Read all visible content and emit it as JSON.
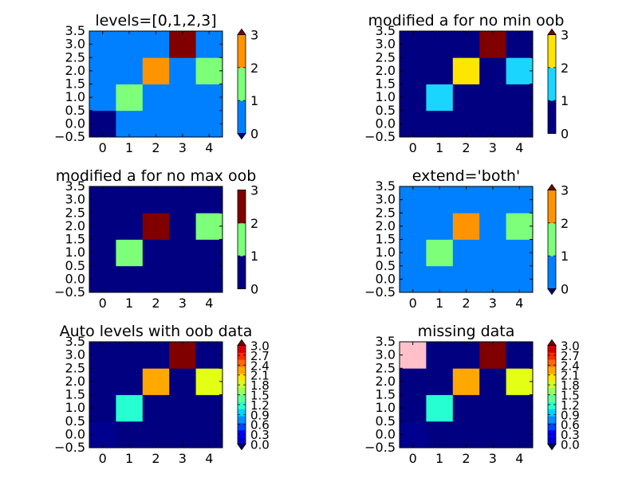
{
  "chart_data": [
    {
      "type": "heatmap",
      "title": "levels=[0,1,2,3]",
      "x_ticks": [
        "0",
        "1",
        "2",
        "3",
        "4"
      ],
      "y_ticks": [
        "3.5",
        "3.0",
        "2.5",
        "2.0",
        "1.5",
        "1.0",
        "0.5",
        "0.0",
        "−0.5"
      ],
      "rows": 4,
      "cols": 5,
      "cells": [
        [
          "#000080",
          "#0080ff",
          "#0080ff",
          "#0080ff",
          "#0080ff"
        ],
        [
          "#0080ff",
          "#7dff7a",
          "#0080ff",
          "#0080ff",
          "#0080ff"
        ],
        [
          "#0080ff",
          "#0080ff",
          "#ff9400",
          "#0080ff",
          "#7dff7a"
        ],
        [
          "#0080ff",
          "#0080ff",
          "#0080ff",
          "#800000",
          "#0080ff"
        ]
      ],
      "colorbar": {
        "segments": [
          "#0080ff",
          "#7dff7a",
          "#ff9400"
        ],
        "ticks": [
          "0",
          "1",
          "2",
          "3"
        ],
        "extend_min": "#000080",
        "extend_max": "#800000"
      }
    },
    {
      "type": "heatmap",
      "title": "modified a for no min oob",
      "x_ticks": [
        "0",
        "1",
        "2",
        "3",
        "4"
      ],
      "y_ticks": [
        "3.5",
        "3.0",
        "2.5",
        "2.0",
        "1.5",
        "1.0",
        "0.5",
        "0.0",
        "−0.5"
      ],
      "rows": 4,
      "cols": 5,
      "cells": [
        [
          "#000080",
          "#000080",
          "#000080",
          "#000080",
          "#000080"
        ],
        [
          "#000080",
          "#1ad6ff",
          "#000080",
          "#000080",
          "#000080"
        ],
        [
          "#000080",
          "#000080",
          "#ffe600",
          "#000080",
          "#1ad6ff"
        ],
        [
          "#000080",
          "#000080",
          "#000080",
          "#800000",
          "#000080"
        ]
      ],
      "colorbar": {
        "segments": [
          "#000080",
          "#1ad6ff",
          "#ffe600"
        ],
        "ticks": [
          "0",
          "1",
          "2",
          "3"
        ],
        "extend_min": null,
        "extend_max": "#800000"
      }
    },
    {
      "type": "heatmap",
      "title": "modified a for no max oob",
      "x_ticks": [
        "0",
        "1",
        "2",
        "3",
        "4"
      ],
      "y_ticks": [
        "3.5",
        "3.0",
        "2.5",
        "2.0",
        "1.5",
        "1.0",
        "0.5",
        "0.0",
        "−0.5"
      ],
      "rows": 4,
      "cols": 5,
      "cells": [
        [
          "#000080",
          "#000080",
          "#000080",
          "#000080",
          "#000080"
        ],
        [
          "#000080",
          "#7dff7a",
          "#000080",
          "#000080",
          "#000080"
        ],
        [
          "#000080",
          "#000080",
          "#800000",
          "#000080",
          "#7dff7a"
        ],
        [
          "#000080",
          "#000080",
          "#000080",
          "#000080",
          "#000080"
        ]
      ],
      "colorbar": {
        "segments": [
          "#000080",
          "#7dff7a",
          "#800000"
        ],
        "ticks": [
          "0",
          "1",
          "2",
          "3"
        ],
        "extend_min": null,
        "extend_max": null
      }
    },
    {
      "type": "heatmap",
      "title": "extend='both'",
      "x_ticks": [
        "0",
        "1",
        "2",
        "3",
        "4"
      ],
      "y_ticks": [
        "3.5",
        "3.0",
        "2.5",
        "2.0",
        "1.5",
        "1.0",
        "0.5",
        "0.0",
        "−0.5"
      ],
      "rows": 4,
      "cols": 5,
      "cells": [
        [
          "#0080ff",
          "#0080ff",
          "#0080ff",
          "#0080ff",
          "#0080ff"
        ],
        [
          "#0080ff",
          "#7dff7a",
          "#0080ff",
          "#0080ff",
          "#0080ff"
        ],
        [
          "#0080ff",
          "#0080ff",
          "#ff9400",
          "#0080ff",
          "#7dff7a"
        ],
        [
          "#0080ff",
          "#0080ff",
          "#0080ff",
          "#0080ff",
          "#0080ff"
        ]
      ],
      "colorbar": {
        "segments": [
          "#0080ff",
          "#7dff7a",
          "#ff9400"
        ],
        "ticks": [
          "0",
          "1",
          "2",
          "3"
        ],
        "extend_min": "#000080",
        "extend_max": "#800000"
      }
    },
    {
      "type": "heatmap",
      "title": "Auto levels with oob data",
      "x_ticks": [
        "0",
        "1",
        "2",
        "3",
        "4"
      ],
      "y_ticks": [
        "3.5",
        "3.0",
        "2.5",
        "2.0",
        "1.5",
        "1.0",
        "0.5",
        "0.0",
        "−0.5"
      ],
      "rows": 4,
      "cols": 5,
      "cells": [
        [
          "#00008f",
          "#000080",
          "#000080",
          "#000080",
          "#000080"
        ],
        [
          "#000080",
          "#26ffd1",
          "#000080",
          "#000080",
          "#000080"
        ],
        [
          "#000080",
          "#000080",
          "#ffa800",
          "#000080",
          "#e3ff14"
        ],
        [
          "#000080",
          "#000080",
          "#000080",
          "#800000",
          "#000080"
        ]
      ],
      "colorbar": {
        "segments": [
          "#0000cc",
          "#0000ff",
          "#0044ff",
          "#0090ff",
          "#00d4ff",
          "#29ffce",
          "#60ff97",
          "#97ff60",
          "#ceff29",
          "#ffe600",
          "#ffa700",
          "#ff6800",
          "#ff2a00",
          "#d40000"
        ],
        "ticks": [
          "0.0",
          "0.3",
          "0.6",
          "0.9",
          "1.2",
          "1.5",
          "1.8",
          "2.1",
          "2.4",
          "2.7",
          "3.0"
        ],
        "extend_min": "#000080",
        "extend_max": "#800000"
      }
    },
    {
      "type": "heatmap",
      "title": "missing data",
      "x_ticks": [
        "0",
        "1",
        "2",
        "3",
        "4"
      ],
      "y_ticks": [
        "3.5",
        "3.0",
        "2.5",
        "2.0",
        "1.5",
        "1.0",
        "0.5",
        "0.0",
        "−0.5"
      ],
      "rows": 4,
      "cols": 5,
      "cells": [
        [
          "#00008f",
          "#000080",
          "#000080",
          "#000080",
          "#000080"
        ],
        [
          "#000080",
          "#26ffd1",
          "#000080",
          "#000080",
          "#000080"
        ],
        [
          "#000080",
          "#000080",
          "#ffa800",
          "#000080",
          "#e3ff14"
        ],
        [
          "#ffc0cb",
          "#000080",
          "#000080",
          "#800000",
          "#000080"
        ]
      ],
      "colorbar": {
        "segments": [
          "#0000cc",
          "#0000ff",
          "#0044ff",
          "#0090ff",
          "#00d4ff",
          "#29ffce",
          "#60ff97",
          "#97ff60",
          "#ceff29",
          "#ffe600",
          "#ffa700",
          "#ff6800",
          "#ff2a00",
          "#d40000"
        ],
        "ticks": [
          "0.0",
          "0.3",
          "0.6",
          "0.9",
          "1.2",
          "1.5",
          "1.8",
          "2.1",
          "2.4",
          "2.7",
          "3.0"
        ],
        "extend_min": "#000080",
        "extend_max": "#800000"
      }
    }
  ]
}
